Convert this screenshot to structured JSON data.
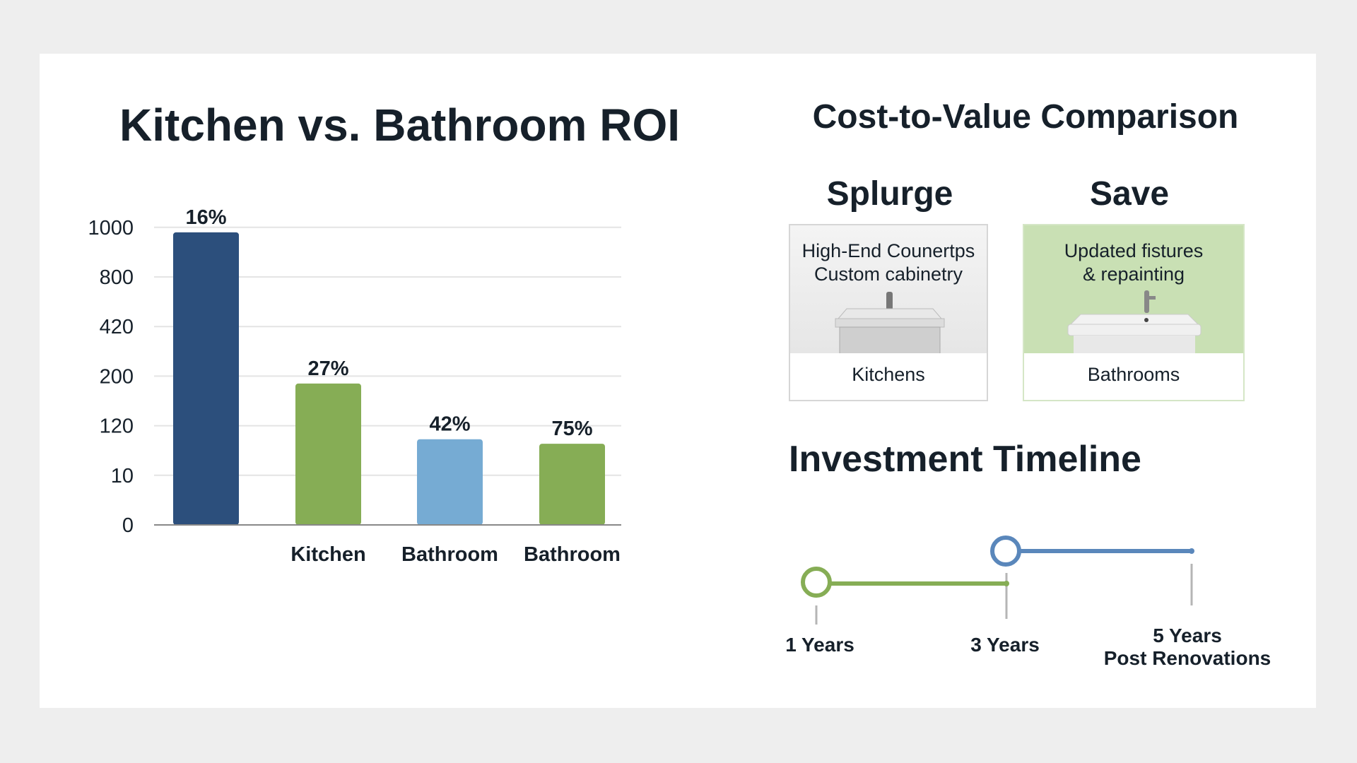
{
  "chart_data": {
    "type": "bar",
    "title": "Kitchen vs. Bathroom ROI",
    "y_ticks": [
      "0",
      "10",
      "120",
      "200",
      "420",
      "800",
      "1000"
    ],
    "y_tick_values": [
      0,
      10,
      120,
      200,
      420,
      800,
      1000
    ],
    "categories": [
      "",
      "Kitchen",
      "Bathroom",
      "Bathroom"
    ],
    "values": [
      980,
      188,
      90,
      80
    ],
    "data_labels": [
      "16%",
      "27%",
      "42%",
      "75%"
    ],
    "colors": [
      "#2c4f7c",
      "#86ad55",
      "#76abd3",
      "#86ad55"
    ],
    "grid": true,
    "ylim": [
      0,
      1000
    ]
  },
  "comparison": {
    "title": "Cost-to-Value Comparison",
    "splurge": {
      "heading": "Splurge",
      "line1": "High-End Counertps",
      "line2": "Custom cabinetry",
      "label": "Kitchens",
      "icon": "sink-icon"
    },
    "save": {
      "heading": "Save",
      "line1": "Updated fistures",
      "line2": "& repainting",
      "label": "Bathrooms",
      "icon": "sink-icon",
      "bg": "#c9e0b4"
    }
  },
  "timeline": {
    "title": "Investment Timeline",
    "points": [
      {
        "label": "1 Years",
        "color": "#86ad55"
      },
      {
        "label": "3 Years",
        "color": "#5a87bb"
      },
      {
        "label": "5 Years",
        "label2": "Post Renovations"
      }
    ]
  }
}
